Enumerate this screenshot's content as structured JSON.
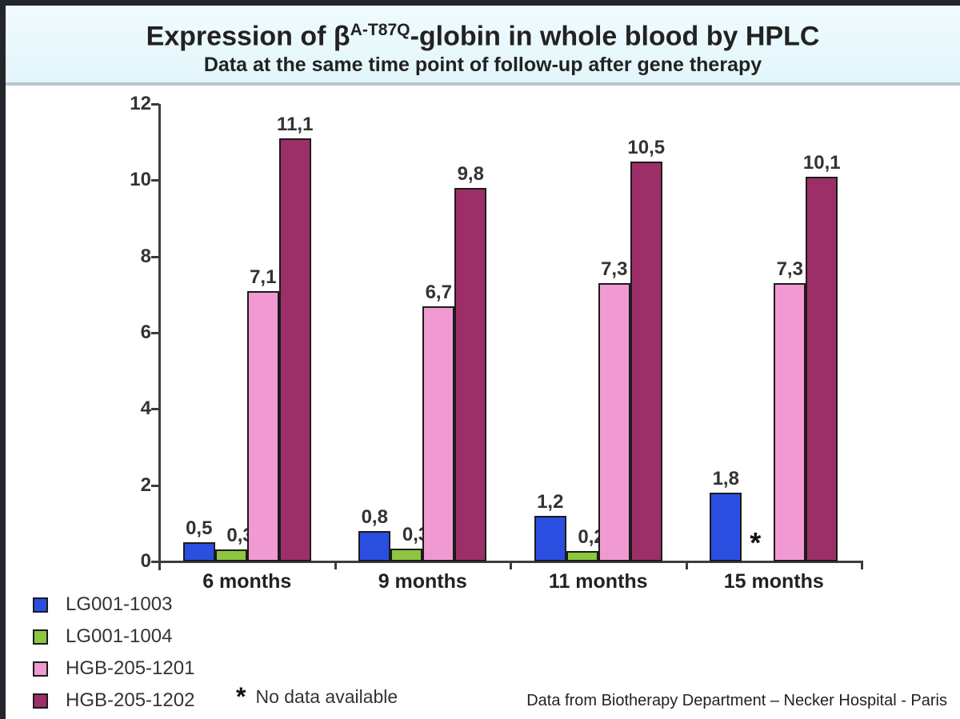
{
  "header": {
    "title_prefix": "Expression of β",
    "title_sup": "A-T87Q",
    "title_suffix": "-globin in whole blood by HPLC",
    "subtitle": "Data at the same time point of follow-up after gene therapy"
  },
  "chart_data": {
    "type": "bar",
    "categories": [
      "6 months",
      "9 months",
      "11 months",
      "15 months"
    ],
    "series": [
      {
        "name": "LG001-1003",
        "color": "#2a4fe0",
        "values": [
          0.5,
          0.8,
          1.2,
          1.8
        ],
        "labels": [
          "0,5",
          "0,8",
          "1,2",
          "1,8"
        ]
      },
      {
        "name": "LG001-1004",
        "color": "#8dc63f",
        "values": [
          0.32,
          0.33,
          0.27,
          null
        ],
        "labels": [
          "0,32",
          "0,33",
          "0,27",
          "*"
        ]
      },
      {
        "name": "HGB-205-1201",
        "color": "#f19ad2",
        "values": [
          7.1,
          6.7,
          7.3,
          7.3
        ],
        "labels": [
          "7,1",
          "6,7",
          "7,3",
          "7,3"
        ]
      },
      {
        "name": "HGB-205-1202",
        "color": "#9c2f67",
        "values": [
          11.1,
          9.8,
          10.5,
          10.1
        ],
        "labels": [
          "11,1",
          "9,8",
          "10,5",
          "10,1"
        ]
      }
    ],
    "ylim": [
      0,
      12
    ],
    "yticks": [
      0,
      2,
      4,
      6,
      8,
      10,
      12
    ],
    "grid": false,
    "legend_position": "bottom-left",
    "no_data_marker": "*"
  },
  "legend": {
    "no_data_symbol": "*",
    "no_data_note": "No data available"
  },
  "footer": {
    "attribution": "Data from Biotherapy Department – Necker Hospital - Paris"
  }
}
